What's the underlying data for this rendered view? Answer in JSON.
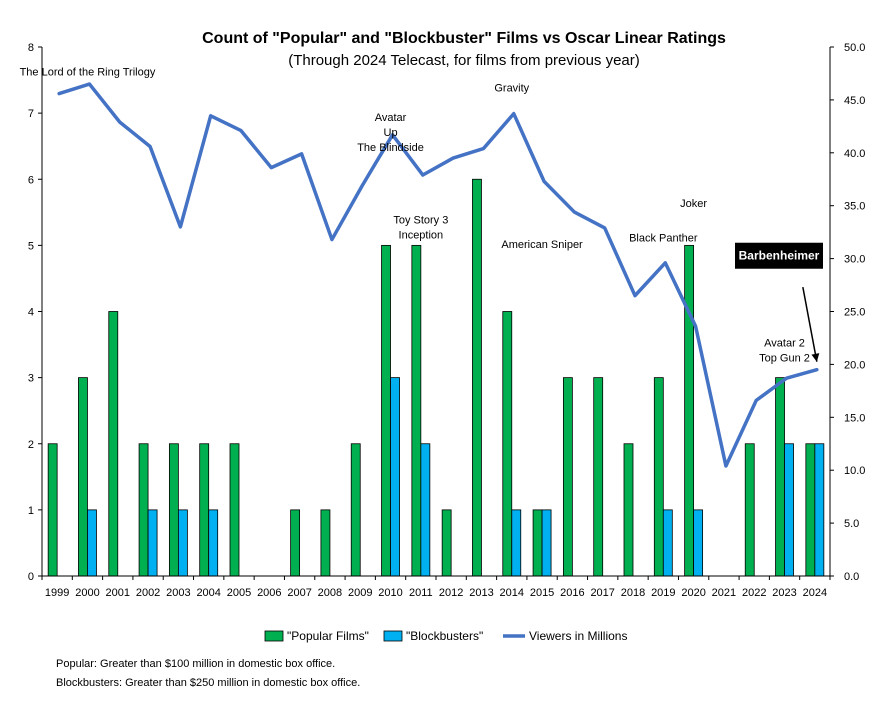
{
  "chart_data": {
    "type": "bar",
    "title": "Count of \"Popular\" and \"Blockbuster\" Films vs Oscar Linear Ratings",
    "subtitle": "(Through 2024 Telecast, for films from previous year)",
    "categories": [
      "1999",
      "2000",
      "2001",
      "2002",
      "2003",
      "2004",
      "2005",
      "2006",
      "2007",
      "2008",
      "2009",
      "2010",
      "2011",
      "2012",
      "2013",
      "2014",
      "2015",
      "2016",
      "2017",
      "2018",
      "2019",
      "2020",
      "2021",
      "2022",
      "2023",
      "2024"
    ],
    "series": [
      {
        "name": "\"Popular Films\"",
        "type": "bar",
        "axis": "left",
        "color": "#00b050",
        "values": [
          2,
          3,
          4,
          2,
          2,
          2,
          2,
          0,
          1,
          1,
          2,
          5,
          5,
          1,
          6,
          4,
          1,
          3,
          3,
          2,
          3,
          5,
          0,
          2,
          3,
          2
        ]
      },
      {
        "name": "\"Blockbusters\"",
        "type": "bar",
        "axis": "left",
        "color": "#00b0f0",
        "values": [
          0,
          1,
          0,
          1,
          1,
          1,
          0,
          0,
          0,
          0,
          0,
          3,
          2,
          0,
          0,
          1,
          1,
          0,
          0,
          0,
          1,
          1,
          0,
          0,
          2,
          2
        ]
      },
      {
        "name": "Viewers in Millions",
        "type": "line",
        "axis": "right",
        "color": "#4472c4",
        "values": [
          45.6,
          46.5,
          42.9,
          40.6,
          33.0,
          43.5,
          42.1,
          38.6,
          39.9,
          31.8,
          36.9,
          41.7,
          37.9,
          39.5,
          40.4,
          43.7,
          37.3,
          34.4,
          32.9,
          26.5,
          29.6,
          23.6,
          10.4,
          16.6,
          18.7,
          19.5
        ]
      }
    ],
    "ylim": [
      0,
      8
    ],
    "yticks": [
      "0",
      "1",
      "2",
      "3",
      "4",
      "5",
      "6",
      "7",
      "8"
    ],
    "y2lim": [
      0,
      50
    ],
    "y2ticks": [
      "0.0",
      "5.0",
      "10.0",
      "15.0",
      "20.0",
      "25.0",
      "30.0",
      "35.0",
      "40.0",
      "45.0",
      "50.0"
    ],
    "grid": false,
    "legend_position": "bottom",
    "annotations": [
      {
        "year": "2000",
        "level": 47.3,
        "lines": [
          "The Lord of the Ring Trilogy"
        ]
      },
      {
        "year": "2010",
        "level": 43.0,
        "lines": [
          "Avatar",
          "Up",
          "The Blindside"
        ]
      },
      {
        "year": "2014",
        "level": 45.8,
        "lines": [
          "Gravity"
        ]
      },
      {
        "year": "2011",
        "level": 33.3,
        "lines": [
          "Toy Story 3",
          "Inception"
        ]
      },
      {
        "year": "2015",
        "level": 31.0,
        "lines": [
          "American Sniper"
        ]
      },
      {
        "year": "2019",
        "level": 31.6,
        "lines": [
          "Black Panther"
        ]
      },
      {
        "year": "2020",
        "level": 34.9,
        "lines": [
          "Joker"
        ]
      },
      {
        "year": "2023",
        "level": 21.7,
        "lines": [
          "Avatar 2",
          "Top Gun 2"
        ]
      }
    ],
    "callout": {
      "label": "Barbenheimer",
      "points_to": "2024"
    }
  },
  "notes": {
    "popular": "Popular: Greater than $100 million in domestic box office.",
    "blockbusters": "Blockbusters: Greater than $250 million in domestic box office."
  }
}
